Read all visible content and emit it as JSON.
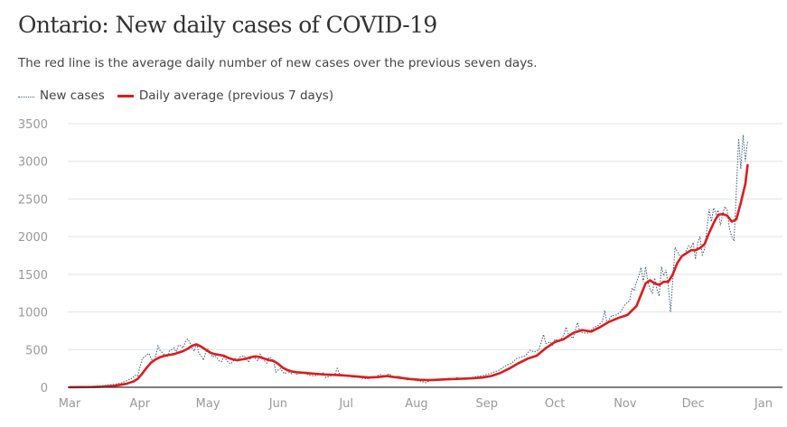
{
  "header": {
    "title": "Ontario: New daily cases of COVID-19",
    "subtitle": "The red line is the average daily number of new cases over the previous seven days."
  },
  "legend": {
    "items": [
      {
        "label": "New cases",
        "style": "dotted",
        "color": "#3c5a78"
      },
      {
        "label": "Daily average (previous 7 days)",
        "style": "solid",
        "color": "#dd1c1c"
      }
    ]
  },
  "chart_data": {
    "type": "line",
    "title": "Ontario: New daily cases of COVID-19",
    "xlabel": "",
    "ylabel": "",
    "ylim": [
      0,
      3500
    ],
    "yticks": [
      "0",
      "500",
      "1000",
      "1500",
      "2000",
      "2500",
      "3000",
      "3500"
    ],
    "ytick_values": [
      0,
      500,
      1000,
      1500,
      2000,
      2500,
      3000,
      3500
    ],
    "xticks": [
      "Mar",
      "Apr",
      "May",
      "Jun",
      "Jul",
      "Aug",
      "Sep",
      "Oct",
      "Nov",
      "Dec",
      "Jan"
    ],
    "xtick_day_index": [
      0,
      31,
      61,
      92,
      122,
      153,
      184,
      214,
      245,
      275,
      306
    ],
    "grid": true,
    "legend_position": "top-left",
    "x_unit": "day index from Mar 1",
    "anchors_note": "approximate values read from chart",
    "series": [
      {
        "name": "New cases",
        "color": "#3c5a78",
        "style": "dotted",
        "points": [
          [
            0,
            2
          ],
          [
            5,
            4
          ],
          [
            10,
            8
          ],
          [
            14,
            20
          ],
          [
            17,
            30
          ],
          [
            20,
            40
          ],
          [
            23,
            60
          ],
          [
            25,
            85
          ],
          [
            27,
            110
          ],
          [
            29,
            160
          ],
          [
            30,
            150
          ],
          [
            31,
            260
          ],
          [
            32,
            380
          ],
          [
            33,
            400
          ],
          [
            34,
            430
          ],
          [
            35,
            450
          ],
          [
            36,
            380
          ],
          [
            37,
            340
          ],
          [
            38,
            420
          ],
          [
            39,
            550
          ],
          [
            40,
            480
          ],
          [
            41,
            460
          ],
          [
            42,
            420
          ],
          [
            43,
            400
          ],
          [
            44,
            480
          ],
          [
            45,
            500
          ],
          [
            46,
            520
          ],
          [
            47,
            470
          ],
          [
            48,
            560
          ],
          [
            49,
            550
          ],
          [
            50,
            520
          ],
          [
            51,
            600
          ],
          [
            52,
            640
          ],
          [
            53,
            600
          ],
          [
            54,
            520
          ],
          [
            55,
            480
          ],
          [
            56,
            590
          ],
          [
            57,
            450
          ],
          [
            58,
            420
          ],
          [
            59,
            360
          ],
          [
            60,
            460
          ],
          [
            61,
            510
          ],
          [
            62,
            470
          ],
          [
            63,
            400
          ],
          [
            64,
            420
          ],
          [
            65,
            390
          ],
          [
            66,
            350
          ],
          [
            67,
            340
          ],
          [
            68,
            400
          ],
          [
            69,
            370
          ],
          [
            70,
            330
          ],
          [
            71,
            310
          ],
          [
            72,
            340
          ],
          [
            73,
            380
          ],
          [
            74,
            350
          ],
          [
            75,
            400
          ],
          [
            76,
            410
          ],
          [
            77,
            420
          ],
          [
            78,
            380
          ],
          [
            79,
            330
          ],
          [
            80,
            400
          ],
          [
            81,
            420
          ],
          [
            82,
            380
          ],
          [
            83,
            350
          ],
          [
            84,
            440
          ],
          [
            85,
            400
          ],
          [
            86,
            350
          ],
          [
            87,
            320
          ],
          [
            88,
            400
          ],
          [
            89,
            380
          ],
          [
            90,
            340
          ],
          [
            91,
            200
          ],
          [
            92,
            230
          ],
          [
            93,
            250
          ],
          [
            94,
            200
          ],
          [
            95,
            180
          ],
          [
            96,
            220
          ],
          [
            97,
            190
          ],
          [
            98,
            180
          ],
          [
            99,
            210
          ],
          [
            100,
            170
          ],
          [
            102,
            190
          ],
          [
            104,
            180
          ],
          [
            106,
            160
          ],
          [
            108,
            150
          ],
          [
            110,
            170
          ],
          [
            112,
            190
          ],
          [
            113,
            130
          ],
          [
            115,
            150
          ],
          [
            117,
            170
          ],
          [
            118,
            250
          ],
          [
            119,
            180
          ],
          [
            121,
            160
          ],
          [
            123,
            150
          ],
          [
            125,
            130
          ],
          [
            127,
            140
          ],
          [
            129,
            120
          ],
          [
            131,
            110
          ],
          [
            133,
            130
          ],
          [
            135,
            140
          ],
          [
            137,
            170
          ],
          [
            139,
            150
          ],
          [
            141,
            180
          ],
          [
            143,
            130
          ],
          [
            145,
            150
          ],
          [
            147,
            130
          ],
          [
            149,
            100
          ],
          [
            151,
            110
          ],
          [
            153,
            90
          ],
          [
            155,
            80
          ],
          [
            157,
            60
          ],
          [
            159,
            90
          ],
          [
            161,
            100
          ],
          [
            163,
            110
          ],
          [
            165,
            100
          ],
          [
            167,
            120
          ],
          [
            169,
            110
          ],
          [
            171,
            130
          ],
          [
            173,
            110
          ],
          [
            175,
            120
          ],
          [
            177,
            130
          ],
          [
            179,
            140
          ],
          [
            181,
            150
          ],
          [
            183,
            160
          ],
          [
            185,
            180
          ],
          [
            187,
            200
          ],
          [
            189,
            220
          ],
          [
            191,
            260
          ],
          [
            193,
            300
          ],
          [
            195,
            320
          ],
          [
            197,
            380
          ],
          [
            199,
            400
          ],
          [
            201,
            420
          ],
          [
            203,
            490
          ],
          [
            205,
            470
          ],
          [
            207,
            500
          ],
          [
            209,
            700
          ],
          [
            210,
            580
          ],
          [
            212,
            600
          ],
          [
            213,
            560
          ],
          [
            214,
            640
          ],
          [
            216,
            600
          ],
          [
            218,
            700
          ],
          [
            219,
            800
          ],
          [
            220,
            700
          ],
          [
            222,
            650
          ],
          [
            224,
            860
          ],
          [
            225,
            740
          ],
          [
            227,
            720
          ],
          [
            229,
            720
          ],
          [
            231,
            790
          ],
          [
            233,
            820
          ],
          [
            235,
            880
          ],
          [
            236,
            1020
          ],
          [
            237,
            850
          ],
          [
            239,
            950
          ],
          [
            241,
            960
          ],
          [
            243,
            1000
          ],
          [
            245,
            1100
          ],
          [
            247,
            1150
          ],
          [
            248,
            1320
          ],
          [
            249,
            1280
          ],
          [
            250,
            1400
          ],
          [
            251,
            1480
          ],
          [
            252,
            1590
          ],
          [
            253,
            1400
          ],
          [
            254,
            1600
          ],
          [
            255,
            1400
          ],
          [
            256,
            1300
          ],
          [
            257,
            1250
          ],
          [
            258,
            1450
          ],
          [
            259,
            1300
          ],
          [
            260,
            1210
          ],
          [
            261,
            1600
          ],
          [
            262,
            1480
          ],
          [
            263,
            1560
          ],
          [
            264,
            1350
          ],
          [
            265,
            1000
          ],
          [
            266,
            1430
          ],
          [
            267,
            1860
          ],
          [
            268,
            1800
          ],
          [
            269,
            1750
          ],
          [
            270,
            1730
          ],
          [
            271,
            1760
          ],
          [
            272,
            1820
          ],
          [
            273,
            1880
          ],
          [
            274,
            1850
          ],
          [
            275,
            1920
          ],
          [
            276,
            1700
          ],
          [
            277,
            1920
          ],
          [
            278,
            2000
          ],
          [
            279,
            1760
          ],
          [
            280,
            1830
          ],
          [
            281,
            2100
          ],
          [
            282,
            2360
          ],
          [
            283,
            2200
          ],
          [
            284,
            2380
          ],
          [
            285,
            2300
          ],
          [
            286,
            2350
          ],
          [
            287,
            2150
          ],
          [
            288,
            2300
          ],
          [
            289,
            2400
          ],
          [
            290,
            2350
          ],
          [
            291,
            2100
          ],
          [
            292,
            2000
          ],
          [
            293,
            1940
          ],
          [
            294,
            2600
          ],
          [
            295,
            3300
          ],
          [
            296,
            2900
          ],
          [
            297,
            3350
          ],
          [
            298,
            3000
          ],
          [
            299,
            3270
          ]
        ]
      },
      {
        "name": "Daily average (previous 7 days)",
        "color": "#dd1c1c",
        "style": "solid",
        "points": [
          [
            0,
            1
          ],
          [
            10,
            3
          ],
          [
            15,
            8
          ],
          [
            20,
            20
          ],
          [
            25,
            45
          ],
          [
            28,
            75
          ],
          [
            30,
            110
          ],
          [
            32,
            180
          ],
          [
            34,
            260
          ],
          [
            36,
            330
          ],
          [
            38,
            370
          ],
          [
            40,
            400
          ],
          [
            42,
            420
          ],
          [
            44,
            430
          ],
          [
            46,
            440
          ],
          [
            48,
            460
          ],
          [
            50,
            480
          ],
          [
            52,
            510
          ],
          [
            54,
            550
          ],
          [
            56,
            570
          ],
          [
            58,
            540
          ],
          [
            60,
            500
          ],
          [
            62,
            460
          ],
          [
            64,
            440
          ],
          [
            66,
            430
          ],
          [
            68,
            420
          ],
          [
            70,
            390
          ],
          [
            72,
            370
          ],
          [
            74,
            360
          ],
          [
            76,
            370
          ],
          [
            78,
            380
          ],
          [
            80,
            400
          ],
          [
            82,
            410
          ],
          [
            84,
            400
          ],
          [
            86,
            380
          ],
          [
            88,
            360
          ],
          [
            90,
            350
          ],
          [
            92,
            310
          ],
          [
            94,
            260
          ],
          [
            96,
            230
          ],
          [
            98,
            210
          ],
          [
            100,
            200
          ],
          [
            104,
            190
          ],
          [
            108,
            180
          ],
          [
            112,
            170
          ],
          [
            116,
            165
          ],
          [
            120,
            160
          ],
          [
            124,
            150
          ],
          [
            128,
            140
          ],
          [
            132,
            130
          ],
          [
            136,
            135
          ],
          [
            140,
            150
          ],
          [
            142,
            140
          ],
          [
            146,
            125
          ],
          [
            150,
            110
          ],
          [
            154,
            100
          ],
          [
            158,
            95
          ],
          [
            162,
            100
          ],
          [
            166,
            105
          ],
          [
            170,
            110
          ],
          [
            174,
            115
          ],
          [
            178,
            120
          ],
          [
            182,
            130
          ],
          [
            186,
            150
          ],
          [
            190,
            190
          ],
          [
            194,
            250
          ],
          [
            198,
            320
          ],
          [
            202,
            380
          ],
          [
            206,
            420
          ],
          [
            210,
            520
          ],
          [
            214,
            600
          ],
          [
            218,
            640
          ],
          [
            222,
            720
          ],
          [
            226,
            760
          ],
          [
            230,
            740
          ],
          [
            234,
            800
          ],
          [
            238,
            870
          ],
          [
            242,
            920
          ],
          [
            246,
            960
          ],
          [
            250,
            1080
          ],
          [
            252,
            1230
          ],
          [
            254,
            1380
          ],
          [
            256,
            1420
          ],
          [
            258,
            1380
          ],
          [
            260,
            1360
          ],
          [
            262,
            1400
          ],
          [
            264,
            1400
          ],
          [
            266,
            1500
          ],
          [
            268,
            1650
          ],
          [
            270,
            1740
          ],
          [
            272,
            1780
          ],
          [
            274,
            1820
          ],
          [
            276,
            1820
          ],
          [
            278,
            1850
          ],
          [
            280,
            1900
          ],
          [
            282,
            2050
          ],
          [
            284,
            2180
          ],
          [
            286,
            2290
          ],
          [
            288,
            2300
          ],
          [
            290,
            2280
          ],
          [
            292,
            2200
          ],
          [
            294,
            2230
          ],
          [
            296,
            2450
          ],
          [
            298,
            2700
          ],
          [
            299,
            2950
          ]
        ]
      }
    ]
  }
}
